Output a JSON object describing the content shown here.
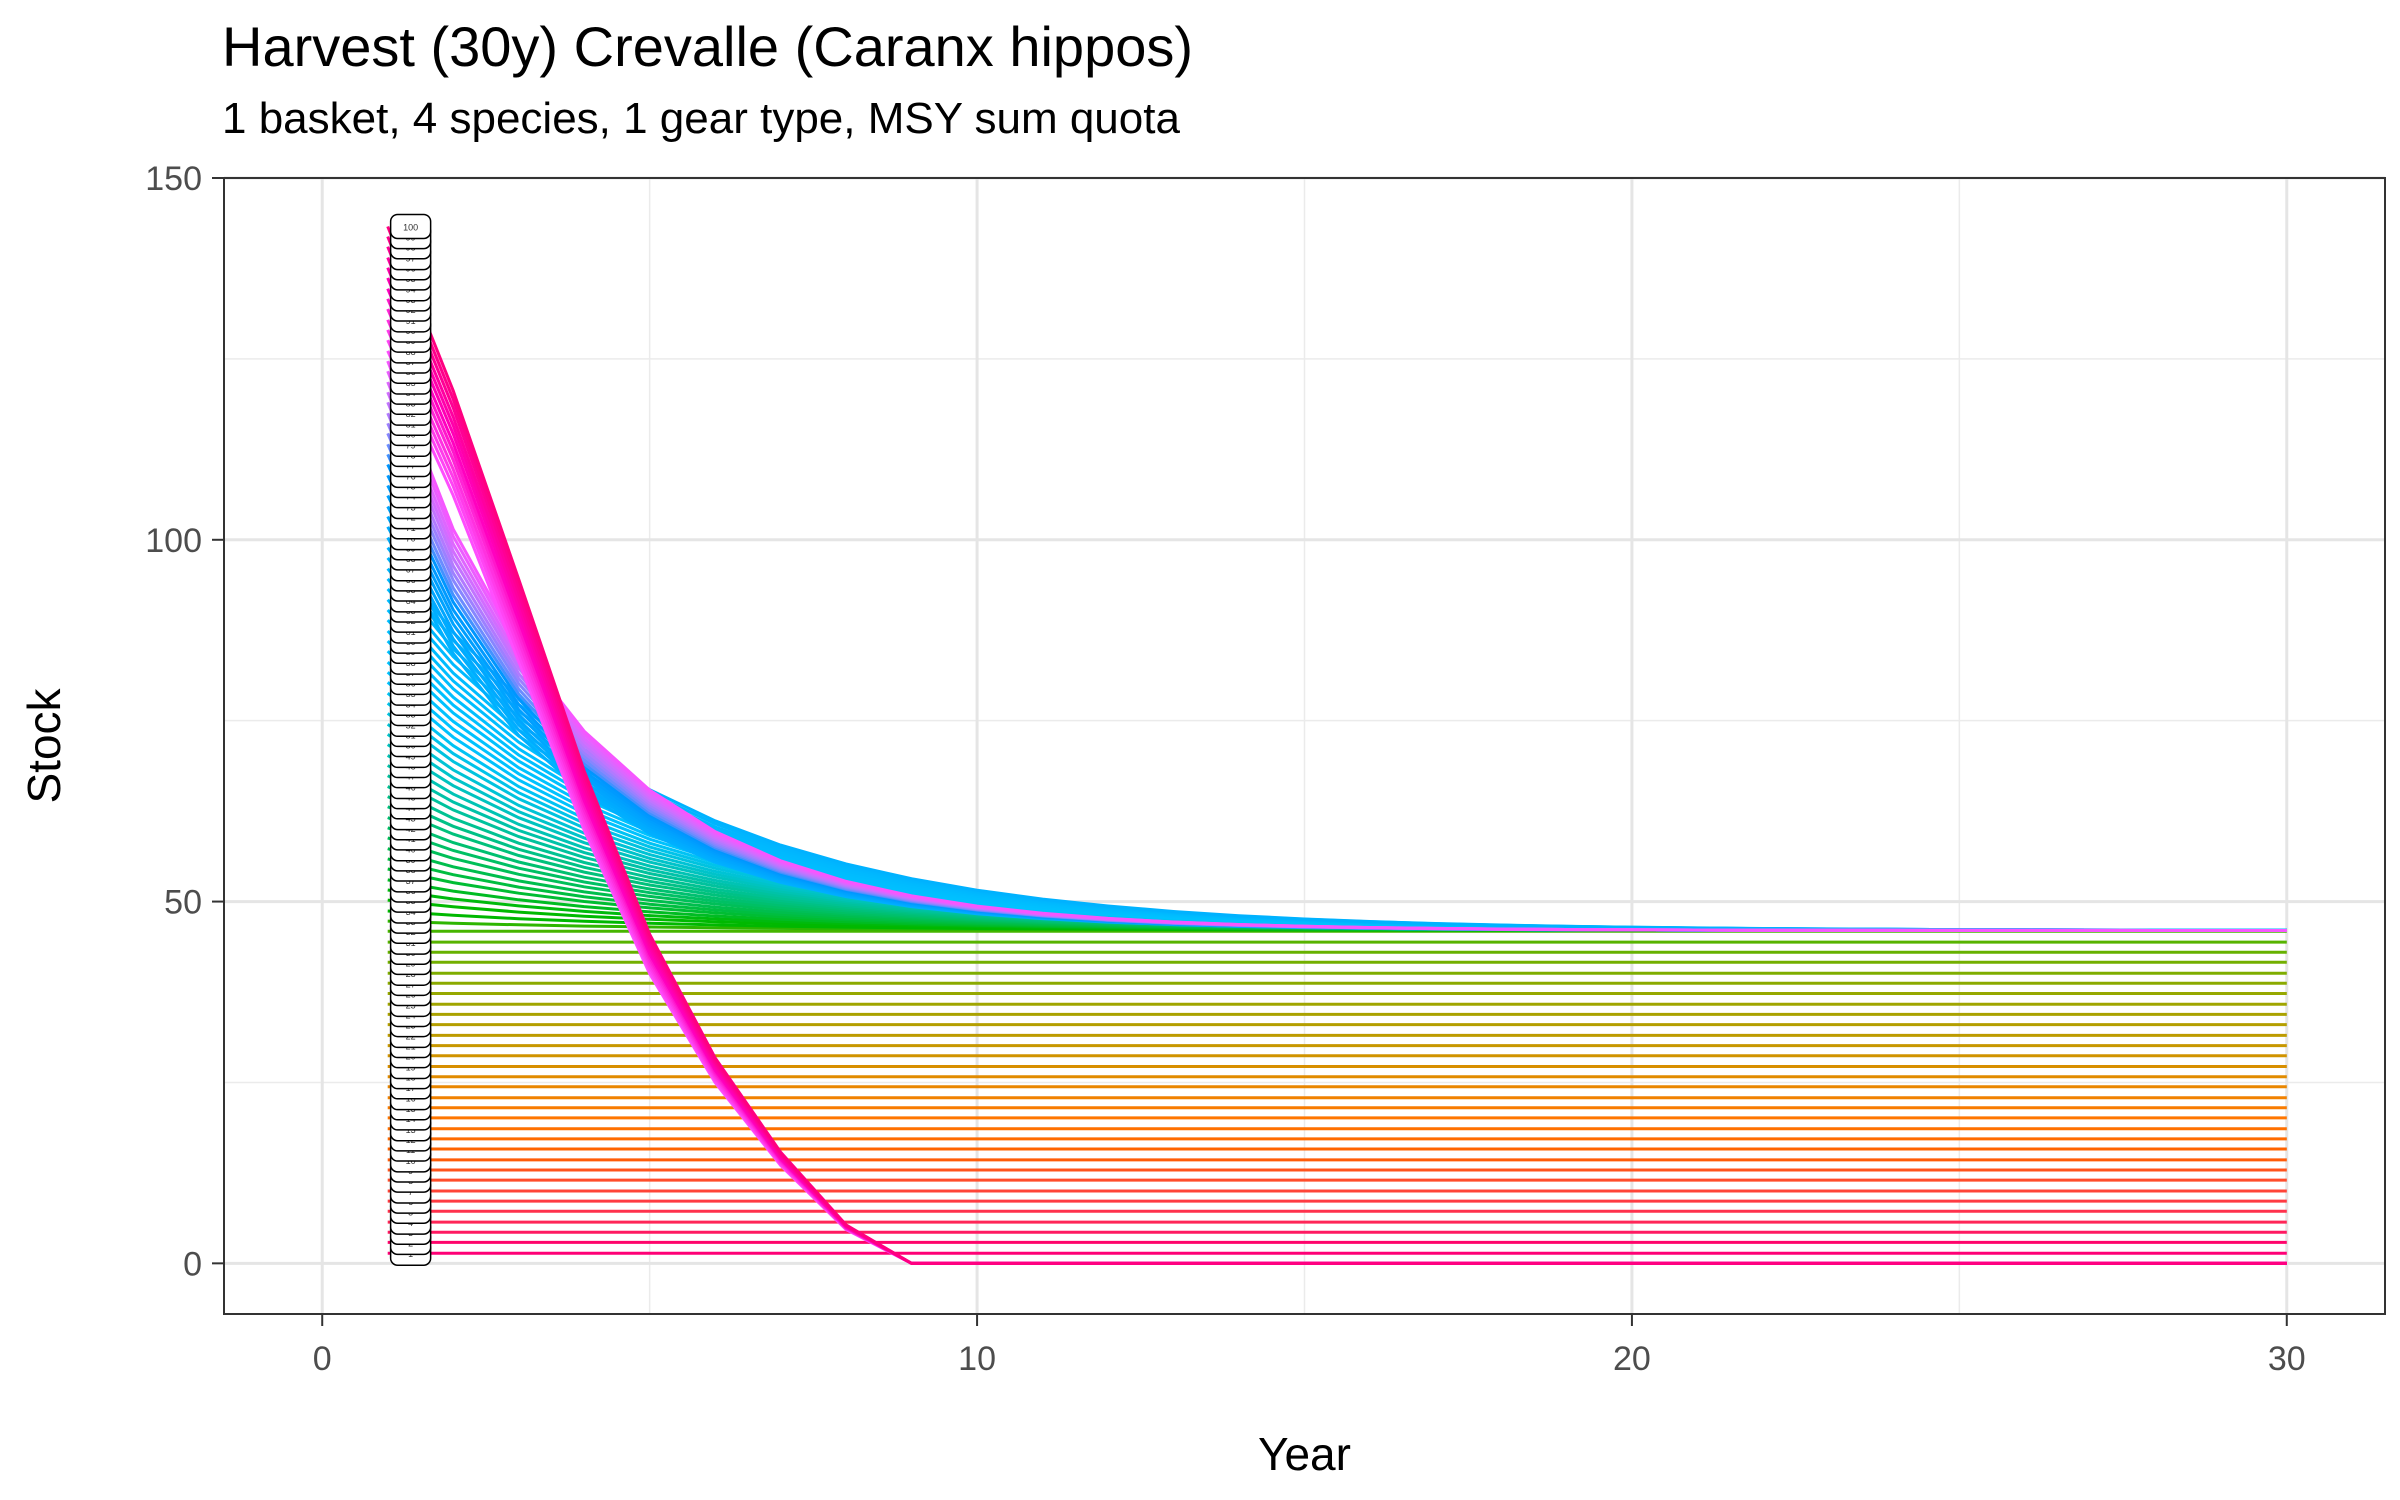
{
  "chart_data": {
    "type": "line",
    "title": "Harvest (30y) Crevalle (Caranx hippos)",
    "subtitle": "1 basket, 4 species, 1 gear type, MSY sum quota",
    "xlabel": "Year",
    "ylabel": "Stock",
    "xlim": [
      -1.5,
      31.5
    ],
    "ylim": [
      -7,
      150
    ],
    "x_ticks": [
      0,
      10,
      20,
      30
    ],
    "y_ticks": [
      0,
      50,
      100,
      150
    ],
    "grid": true,
    "legend": "none",
    "start_labels": [
      "1",
      "2",
      "3",
      "4",
      "5",
      "6",
      "7",
      "8",
      "9",
      "10",
      "11",
      "12",
      "13",
      "14",
      "15",
      "16",
      "17",
      "18",
      "19",
      "20",
      "21",
      "22",
      "23",
      "24",
      "25",
      "26",
      "27",
      "28",
      "29",
      "30",
      "31",
      "32",
      "33",
      "34",
      "35",
      "36",
      "37",
      "38",
      "39",
      "40",
      "41",
      "42",
      "43",
      "44",
      "45",
      "46",
      "47",
      "48",
      "49",
      "50",
      "51",
      "52",
      "53",
      "54",
      "55",
      "56",
      "57",
      "58",
      "59",
      "60",
      "61",
      "62",
      "63",
      "64",
      "65",
      "66",
      "67",
      "68",
      "69",
      "70",
      "71",
      "72",
      "73",
      "74",
      "75",
      "76",
      "77",
      "78",
      "79",
      "80",
      "81",
      "82",
      "83",
      "84",
      "85",
      "86",
      "87",
      "88",
      "89",
      "90",
      "91",
      "92",
      "93",
      "94",
      "95",
      "96",
      "97",
      "98",
      "99",
      "100"
    ],
    "x": [
      1,
      2,
      3,
      4,
      5,
      6,
      7,
      8,
      9,
      10,
      11,
      12,
      13,
      14,
      15,
      16,
      17,
      18,
      19,
      20,
      21,
      22,
      23,
      24,
      25,
      26,
      27,
      28,
      29,
      30
    ],
    "series_description_values": {
      "start_stocks": [
        1.4,
        2.9,
        4.3,
        5.7,
        7.2,
        8.6,
        10.0,
        11.5,
        12.9,
        14.3,
        15.8,
        17.2,
        18.6,
        20.1,
        21.5,
        22.9,
        24.4,
        25.8,
        27.2,
        28.7,
        30.1,
        31.5,
        33.0,
        34.4,
        35.8,
        37.3,
        38.7,
        40.1,
        41.6,
        43.0,
        44.4,
        45.9,
        47.3,
        48.7,
        50.2,
        51.6,
        53.0,
        54.5,
        55.9,
        57.3,
        58.8,
        60.2,
        61.6,
        63.1,
        64.5,
        65.9,
        67.4,
        68.8,
        70.2,
        71.7,
        73.1,
        74.5,
        76.0,
        77.4,
        78.8,
        80.3,
        81.7,
        83.1,
        84.6,
        86.0,
        87.4,
        88.9,
        90.3,
        91.7,
        93.2,
        94.6,
        96.0,
        97.5,
        98.9,
        100.3,
        101.8,
        103.2,
        104.6,
        106.1,
        107.5,
        108.9,
        110.4,
        111.8,
        113.2,
        114.7,
        116.1,
        117.5,
        119.0,
        120.4,
        121.8,
        123.3,
        124.7,
        126.1,
        127.6,
        129.0,
        130.4,
        131.9,
        133.3,
        134.7,
        136.2,
        137.6,
        139.0,
        140.5,
        141.9,
        143.3
      ]
    },
    "colors": {
      "first": "#F8766D",
      "last": "#F8766D"
    }
  }
}
